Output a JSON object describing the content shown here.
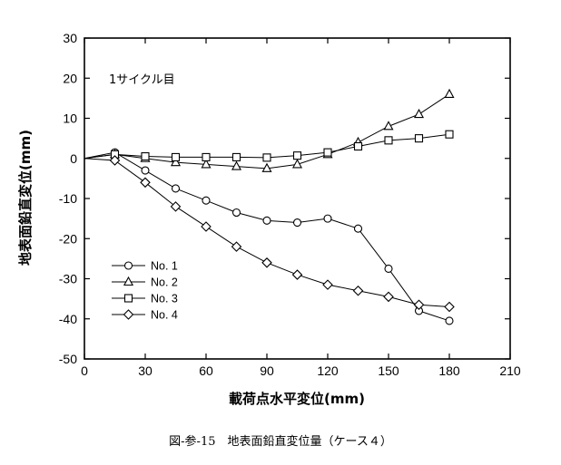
{
  "figure": {
    "annotation": "1サイクル目",
    "caption": "図-参-15　地表面鉛直変位量（ケース４）"
  },
  "chart_data": {
    "type": "line",
    "title": "",
    "xlabel": "載荷点水平変位(mm)",
    "ylabel": "地表面鉛直変位(mm)",
    "xlim": [
      0,
      210
    ],
    "ylim": [
      -50,
      30
    ],
    "xticks": [
      0,
      30,
      60,
      90,
      120,
      150,
      180,
      210
    ],
    "yticks": [
      30,
      20,
      10,
      0,
      -10,
      -20,
      -30,
      -40,
      -50
    ],
    "grid": false,
    "legend": "lower-left",
    "series": [
      {
        "name": "No. 1",
        "marker": "circle",
        "x": [
          0,
          15,
          30,
          45,
          60,
          75,
          90,
          105,
          120,
          135,
          150,
          165,
          180
        ],
        "y": [
          0,
          1.5,
          -3,
          -7.5,
          -10.5,
          -13.5,
          -15.5,
          -16,
          -15,
          -17.5,
          -27.5,
          -38,
          -40.5
        ]
      },
      {
        "name": "No. 2",
        "marker": "triangle",
        "x": [
          0,
          15,
          30,
          45,
          60,
          75,
          90,
          105,
          120,
          135,
          150,
          165,
          180
        ],
        "y": [
          0,
          1,
          0,
          -1,
          -1.5,
          -2,
          -2.5,
          -1.5,
          1,
          4,
          8,
          11,
          16
        ]
      },
      {
        "name": "No. 3",
        "marker": "square",
        "x": [
          0,
          15,
          30,
          45,
          60,
          75,
          90,
          105,
          120,
          135,
          150,
          165,
          180
        ],
        "y": [
          0,
          1,
          0.5,
          0.3,
          0.3,
          0.3,
          0.2,
          0.7,
          1.5,
          3,
          4.5,
          5,
          6
        ]
      },
      {
        "name": "No. 4",
        "marker": "diamond",
        "x": [
          0,
          15,
          30,
          45,
          60,
          75,
          90,
          105,
          120,
          135,
          150,
          165,
          180
        ],
        "y": [
          0,
          -0.5,
          -6,
          -12,
          -17,
          -22,
          -26,
          -29,
          -31.5,
          -33,
          -34.5,
          -36.5,
          -37
        ]
      }
    ]
  }
}
